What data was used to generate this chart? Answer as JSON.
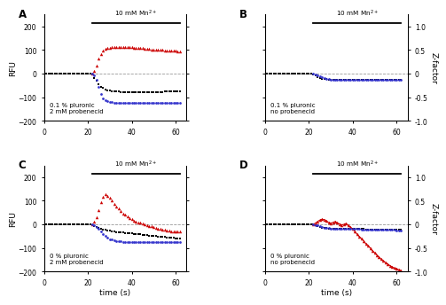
{
  "panels": [
    "A",
    "B",
    "C",
    "D"
  ],
  "annotations": [
    "0.1 % pluronic\n2 mM probenecid",
    "0.1 % pluronic\nno probenecid",
    "0 % pluronic\n2 mM probenecid",
    "0 % pluronic\nno probenecid"
  ],
  "ylim": [
    -200,
    250
  ],
  "xlim": [
    0,
    65
  ],
  "xticks": [
    0,
    20,
    40,
    60
  ],
  "yticks_left": [
    -200,
    -100,
    0,
    100,
    200
  ],
  "yticks_right": [
    -1.0,
    -0.5,
    0,
    0.5,
    1.0
  ],
  "mn_line_start": 22,
  "mn_line_end": 62,
  "black_x": [
    0,
    1,
    2,
    3,
    4,
    5,
    6,
    7,
    8,
    9,
    10,
    11,
    12,
    13,
    14,
    15,
    16,
    17,
    18,
    19,
    20,
    21,
    22,
    23,
    24,
    25,
    26,
    27,
    28,
    29,
    30,
    31,
    32,
    33,
    34,
    35,
    36,
    37,
    38,
    39,
    40,
    41,
    42,
    43,
    44,
    45,
    46,
    47,
    48,
    49,
    50,
    51,
    52,
    53,
    54,
    55,
    56,
    57,
    58,
    59,
    60,
    61,
    62
  ],
  "black_y_A": [
    0,
    0,
    0,
    0,
    0,
    0,
    0,
    0,
    0,
    0,
    0,
    0,
    0,
    0,
    0,
    0,
    0,
    0,
    0,
    0,
    0,
    0,
    -5,
    -18,
    -32,
    -45,
    -55,
    -62,
    -67,
    -70,
    -72,
    -74,
    -75,
    -76,
    -77,
    -78,
    -78,
    -78,
    -79,
    -79,
    -79,
    -79,
    -79,
    -79,
    -79,
    -79,
    -79,
    -79,
    -79,
    -79,
    -79,
    -78,
    -78,
    -78,
    -78,
    -77,
    -77,
    -77,
    -76,
    -76,
    -75,
    -75,
    -75
  ],
  "black_y_B": [
    0,
    0,
    0,
    0,
    0,
    0,
    0,
    0,
    0,
    0,
    0,
    0,
    0,
    0,
    0,
    0,
    0,
    0,
    0,
    0,
    0,
    0,
    -2,
    -8,
    -14,
    -18,
    -21,
    -23,
    -24,
    -25,
    -26,
    -26,
    -27,
    -27,
    -27,
    -27,
    -27,
    -27,
    -27,
    -27,
    -27,
    -27,
    -27,
    -27,
    -27,
    -27,
    -27,
    -27,
    -27,
    -27,
    -27,
    -27,
    -27,
    -27,
    -27,
    -27,
    -27,
    -27,
    -27,
    -27,
    -27,
    -27,
    -27
  ],
  "black_y_C": [
    0,
    0,
    0,
    0,
    0,
    0,
    0,
    0,
    0,
    0,
    0,
    0,
    0,
    0,
    0,
    0,
    0,
    0,
    0,
    0,
    0,
    0,
    -2,
    -6,
    -11,
    -15,
    -19,
    -22,
    -24,
    -26,
    -28,
    -29,
    -30,
    -32,
    -33,
    -34,
    -35,
    -36,
    -37,
    -38,
    -39,
    -40,
    -41,
    -42,
    -43,
    -44,
    -45,
    -46,
    -47,
    -48,
    -49,
    -50,
    -51,
    -52,
    -53,
    -54,
    -55,
    -56,
    -57,
    -58,
    -59,
    -60,
    -61
  ],
  "black_y_D": [
    0,
    0,
    0,
    0,
    0,
    0,
    0,
    0,
    0,
    0,
    0,
    0,
    0,
    0,
    0,
    0,
    0,
    0,
    0,
    0,
    0,
    0,
    -1,
    -4,
    -8,
    -11,
    -13,
    -15,
    -16,
    -17,
    -17,
    -18,
    -18,
    -18,
    -18,
    -18,
    -19,
    -19,
    -19,
    -19,
    -19,
    -20,
    -20,
    -20,
    -20,
    -20,
    -21,
    -21,
    -21,
    -21,
    -21,
    -22,
    -22,
    -22,
    -22,
    -22,
    -23,
    -23,
    -23,
    -23,
    -23,
    -23,
    -23
  ],
  "red_x_A": [
    22,
    23,
    24,
    25,
    26,
    27,
    28,
    29,
    30,
    31,
    32,
    33,
    34,
    35,
    36,
    37,
    38,
    39,
    40,
    41,
    42,
    43,
    44,
    45,
    46,
    47,
    48,
    49,
    50,
    51,
    52,
    53,
    54,
    55,
    56,
    57,
    58,
    59,
    60,
    61,
    62
  ],
  "red_y_A": [
    0,
    12,
    35,
    62,
    82,
    96,
    104,
    108,
    110,
    112,
    113,
    113,
    114,
    114,
    114,
    113,
    112,
    112,
    111,
    110,
    109,
    108,
    107,
    107,
    106,
    105,
    104,
    103,
    103,
    102,
    101,
    100,
    100,
    99,
    98,
    97,
    97,
    96,
    96,
    95,
    95
  ],
  "red_x_C": [
    22,
    23,
    24,
    25,
    26,
    27,
    28,
    29,
    30,
    31,
    32,
    33,
    34,
    35,
    36,
    37,
    38,
    39,
    40,
    41,
    42,
    43,
    44,
    45,
    46,
    47,
    48,
    49,
    50,
    51,
    52,
    53,
    54,
    55,
    56,
    57,
    58,
    59,
    60,
    61,
    62
  ],
  "red_y_C": [
    0,
    10,
    30,
    62,
    95,
    118,
    128,
    122,
    112,
    100,
    88,
    77,
    66,
    56,
    47,
    40,
    33,
    27,
    22,
    17,
    13,
    9,
    6,
    3,
    0,
    -3,
    -6,
    -9,
    -12,
    -15,
    -17,
    -20,
    -22,
    -24,
    -26,
    -28,
    -29,
    -30,
    -30,
    -30,
    -30
  ],
  "red_x_D": [
    22,
    23,
    24,
    25,
    26,
    27,
    28,
    29,
    30,
    31,
    32,
    33,
    34,
    35,
    36,
    37,
    38,
    39,
    40,
    41,
    42,
    43,
    44,
    45,
    46,
    47,
    48,
    49,
    50,
    51,
    52,
    53,
    54,
    55,
    56,
    57,
    58,
    59,
    60,
    61,
    62
  ],
  "red_y_D": [
    0,
    5,
    12,
    18,
    22,
    20,
    14,
    8,
    5,
    8,
    12,
    6,
    2,
    -2,
    0,
    4,
    -5,
    -12,
    -20,
    -30,
    -42,
    -52,
    -60,
    -70,
    -82,
    -90,
    -100,
    -112,
    -120,
    -130,
    -138,
    -148,
    -155,
    -162,
    -168,
    -175,
    -180,
    -185,
    -188,
    -192,
    -196
  ],
  "blue_x_A": [
    22,
    23,
    24,
    25,
    26,
    27,
    28,
    29,
    30,
    31,
    32,
    33,
    34,
    35,
    36,
    37,
    38,
    39,
    40,
    41,
    42,
    43,
    44,
    45,
    46,
    47,
    48,
    49,
    50,
    51,
    52,
    53,
    54,
    55,
    56,
    57,
    58,
    59,
    60,
    61,
    62
  ],
  "blue_y_A": [
    0,
    -8,
    -28,
    -58,
    -88,
    -105,
    -112,
    -117,
    -120,
    -122,
    -123,
    -124,
    -125,
    -125,
    -125,
    -125,
    -125,
    -125,
    -125,
    -125,
    -125,
    -124,
    -124,
    -124,
    -124,
    -124,
    -124,
    -124,
    -124,
    -124,
    -124,
    -124,
    -124,
    -124,
    -124,
    -124,
    -124,
    -124,
    -124,
    -124,
    -124
  ],
  "blue_x_B": [
    22,
    23,
    24,
    25,
    26,
    27,
    28,
    29,
    30,
    31,
    32,
    33,
    34,
    35,
    36,
    37,
    38,
    39,
    40,
    41,
    42,
    43,
    44,
    45,
    46,
    47,
    48,
    49,
    50,
    51,
    52,
    53,
    54,
    55,
    56,
    57,
    58,
    59,
    60,
    61,
    62
  ],
  "blue_y_B": [
    0,
    -3,
    -7,
    -12,
    -16,
    -20,
    -22,
    -24,
    -25,
    -26,
    -26,
    -27,
    -27,
    -27,
    -27,
    -27,
    -28,
    -28,
    -28,
    -28,
    -28,
    -28,
    -28,
    -28,
    -28,
    -28,
    -28,
    -28,
    -28,
    -28,
    -28,
    -28,
    -28,
    -28,
    -28,
    -28,
    -28,
    -28,
    -28,
    -28,
    -28
  ],
  "blue_x_C": [
    22,
    23,
    24,
    25,
    26,
    27,
    28,
    29,
    30,
    31,
    32,
    33,
    34,
    35,
    36,
    37,
    38,
    39,
    40,
    41,
    42,
    43,
    44,
    45,
    46,
    47,
    48,
    49,
    50,
    51,
    52,
    53,
    54,
    55,
    56,
    57,
    58,
    59,
    60,
    61,
    62
  ],
  "blue_y_C": [
    0,
    -4,
    -10,
    -20,
    -30,
    -40,
    -50,
    -57,
    -62,
    -65,
    -68,
    -70,
    -72,
    -73,
    -74,
    -74,
    -74,
    -74,
    -74,
    -74,
    -74,
    -74,
    -74,
    -74,
    -74,
    -74,
    -74,
    -74,
    -74,
    -74,
    -74,
    -74,
    -74,
    -74,
    -74,
    -74,
    -74,
    -74,
    -74,
    -74,
    -74
  ],
  "blue_x_D": [
    22,
    23,
    24,
    25,
    26,
    27,
    28,
    29,
    30,
    31,
    32,
    33,
    34,
    35,
    36,
    37,
    38,
    39,
    40,
    41,
    42,
    43,
    44,
    45,
    46,
    47,
    48,
    49,
    50,
    51,
    52,
    53,
    54,
    55,
    56,
    57,
    58,
    59,
    60,
    61,
    62
  ],
  "blue_y_D": [
    0,
    -2,
    -4,
    -7,
    -10,
    -13,
    -15,
    -16,
    -17,
    -17,
    -18,
    -18,
    -18,
    -18,
    -19,
    -19,
    -19,
    -19,
    -20,
    -20,
    -20,
    -20,
    -21,
    -21,
    -21,
    -21,
    -22,
    -22,
    -22,
    -22,
    -23,
    -23,
    -23,
    -23,
    -24,
    -24,
    -24,
    -24,
    -25,
    -25,
    -25
  ],
  "colors": {
    "black": "#000000",
    "red": "#cc0000",
    "blue": "#3333cc",
    "dashed": "#999999"
  },
  "red_line_D": true,
  "red_connected": {
    "A": false,
    "B": false,
    "C": false,
    "D": true
  }
}
